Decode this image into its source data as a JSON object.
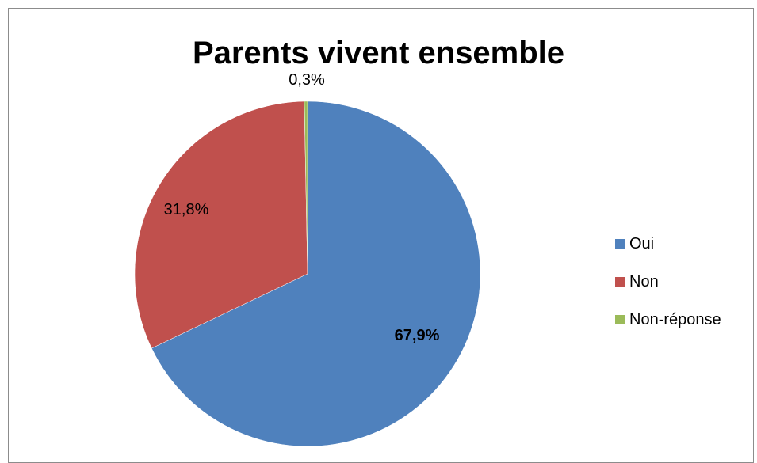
{
  "chart_data": {
    "type": "pie",
    "title": "Parents vivent ensemble",
    "labels": [
      "Oui",
      "Non",
      "Non-réponse"
    ],
    "values": [
      67.9,
      31.8,
      0.3
    ],
    "data_labels": [
      "67,9%",
      "31,8%",
      "0,3%"
    ],
    "colors": [
      "#4f81bd",
      "#c0504d",
      "#9bbb59"
    ],
    "legend_position": "right"
  }
}
